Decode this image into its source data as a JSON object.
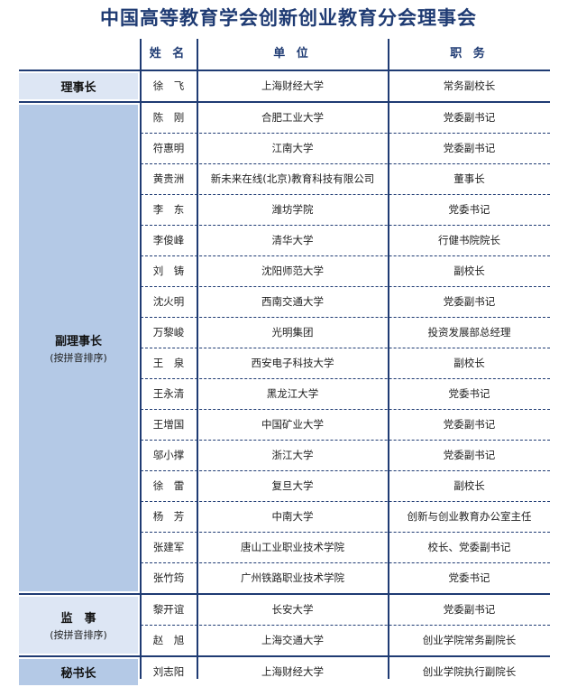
{
  "title": "中国高等教育学会创新创业教育分会理事会",
  "headers": {
    "category": "",
    "name": "姓 名",
    "unit": "单 位",
    "role": "职 务"
  },
  "colors": {
    "navy": "#1f3b73",
    "light_blue": "#dde6f4",
    "mid_blue": "#b4c9e6"
  },
  "groups": [
    {
      "label": "理事长",
      "note": "",
      "color": "#dde6f4",
      "members": [
        {
          "name": "徐　飞",
          "unit": "上海财经大学",
          "role": "常务副校长"
        }
      ]
    },
    {
      "label": "副理事长",
      "note": "(按拼音排序)",
      "color": "#b4c9e6",
      "members": [
        {
          "name": "陈　刚",
          "unit": "合肥工业大学",
          "role": "党委副书记"
        },
        {
          "name": "符惠明",
          "unit": "江南大学",
          "role": "党委副书记"
        },
        {
          "name": "黄贵洲",
          "unit": "新未来在线(北京)教育科技有限公司",
          "role": "董事长"
        },
        {
          "name": "李　东",
          "unit": "潍坊学院",
          "role": "党委书记"
        },
        {
          "name": "李俊峰",
          "unit": "清华大学",
          "role": "行健书院院长"
        },
        {
          "name": "刘　铸",
          "unit": "沈阳师范大学",
          "role": "副校长"
        },
        {
          "name": "沈火明",
          "unit": "西南交通大学",
          "role": "党委副书记"
        },
        {
          "name": "万黎峻",
          "unit": "光明集团",
          "role": "投资发展部总经理"
        },
        {
          "name": "王　泉",
          "unit": "西安电子科技大学",
          "role": "副校长"
        },
        {
          "name": "王永清",
          "unit": "黑龙江大学",
          "role": "党委书记"
        },
        {
          "name": "王增国",
          "unit": "中国矿业大学",
          "role": "党委副书记"
        },
        {
          "name": "邬小撑",
          "unit": "浙江大学",
          "role": "党委副书记"
        },
        {
          "name": "徐　雷",
          "unit": "复旦大学",
          "role": "副校长"
        },
        {
          "name": "杨　芳",
          "unit": "中南大学",
          "role": "创新与创业教育办公室主任"
        },
        {
          "name": "张建军",
          "unit": "唐山工业职业技术学院",
          "role": "校长、党委副书记"
        },
        {
          "name": "张竹筠",
          "unit": "广州铁路职业技术学院",
          "role": "党委书记"
        }
      ]
    },
    {
      "label": "监　事",
      "note": "(按拼音排序)",
      "color": "#dde6f4",
      "members": [
        {
          "name": "黎开谊",
          "unit": "长安大学",
          "role": "党委副书记"
        },
        {
          "name": "赵　旭",
          "unit": "上海交通大学",
          "role": "创业学院常务副院长"
        }
      ]
    },
    {
      "label": "秘书长",
      "note": "",
      "color": "#b4c9e6",
      "members": [
        {
          "name": "刘志阳",
          "unit": "上海财经大学",
          "role": "创业学院执行副院长"
        }
      ]
    }
  ]
}
